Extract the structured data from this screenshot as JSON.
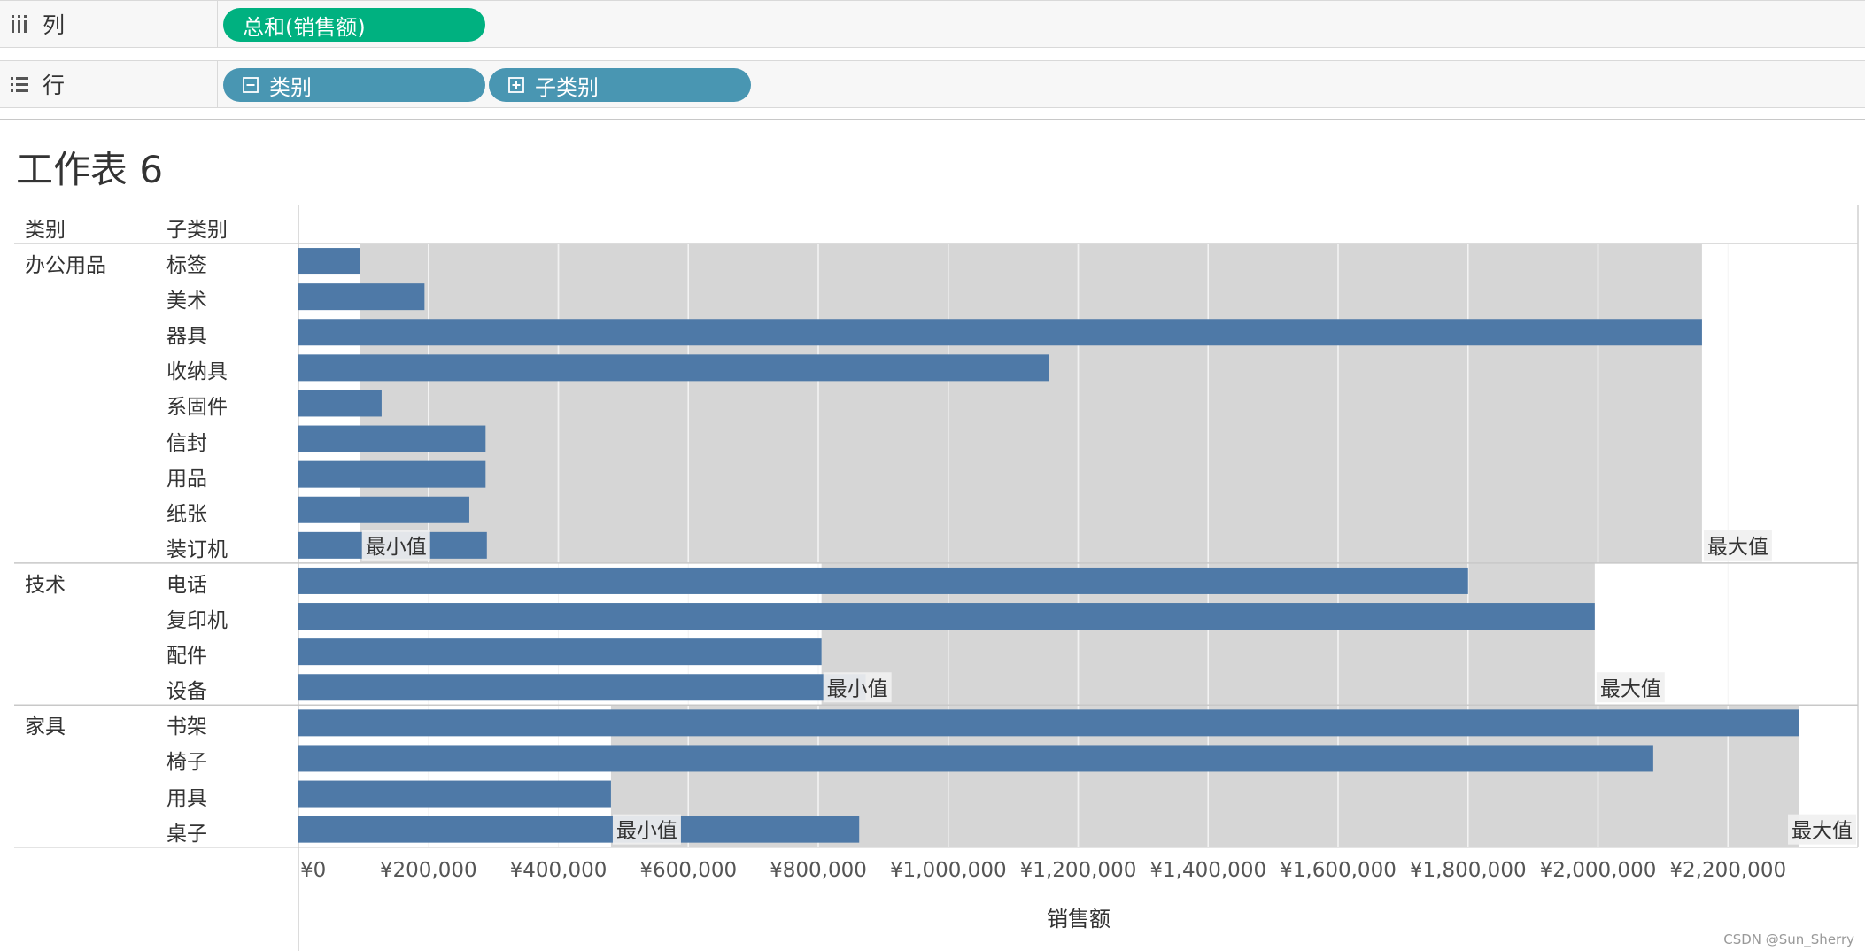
{
  "shelves": {
    "columns": {
      "label": "列",
      "pills": [
        "总和(销售额)"
      ]
    },
    "rows": {
      "label": "行",
      "pills": [
        "类别",
        "子类别"
      ]
    }
  },
  "sheet_title": "工作表 6",
  "headers": {
    "category": "类别",
    "subcategory": "子类别"
  },
  "colors": {
    "bar": "#4e79a7",
    "band": "#d6d6d6",
    "pill_measure": "#00b180",
    "pill_dimension": "#4996b2"
  },
  "icons": {
    "columns_shelf": "columns-icon",
    "rows_shelf": "rows-icon",
    "collapse": "minus-box-icon",
    "expand": "plus-box-icon"
  },
  "chart_data": {
    "type": "bar",
    "orientation": "horizontal",
    "xlabel": "销售额",
    "xlim": [
      0,
      2400000
    ],
    "ticks": [
      0,
      200000,
      400000,
      600000,
      800000,
      1000000,
      1200000,
      1400000,
      1600000,
      1800000,
      2000000,
      2200000
    ],
    "tick_labels": [
      "¥0",
      "¥200,000",
      "¥400,000",
      "¥600,000",
      "¥800,000",
      "¥1,000,000",
      "¥1,200,000",
      "¥1,400,000",
      "¥1,600,000",
      "¥1,800,000",
      "¥2,000,000",
      "¥2,200,000"
    ],
    "groups": [
      {
        "category": "办公用品",
        "subcategories": [
          "标签",
          "美术",
          "器具",
          "收纳具",
          "系固件",
          "信封",
          "用品",
          "纸张",
          "装订机"
        ],
        "values": [
          95000,
          194000,
          2160000,
          1155000,
          128000,
          288000,
          288000,
          263000,
          290000
        ],
        "reference_band": {
          "min": 95000,
          "max": 2160000,
          "min_label": "最小值",
          "max_label": "最大值"
        }
      },
      {
        "category": "技术",
        "subcategories": [
          "电话",
          "复印机",
          "配件",
          "设备"
        ],
        "values": [
          1800000,
          1995000,
          805000,
          873000
        ],
        "reference_band": {
          "min": 805000,
          "max": 1995000,
          "min_label": "最小值",
          "max_label": "最大值"
        }
      },
      {
        "category": "家具",
        "subcategories": [
          "书架",
          "椅子",
          "用具",
          "桌子"
        ],
        "values": [
          2310000,
          2085000,
          481000,
          863000
        ],
        "reference_band": {
          "min": 481000,
          "max": 2310000,
          "min_label": "最小值",
          "max_label": "最大值"
        }
      }
    ]
  },
  "watermark": "CSDN @Sun_Sherry"
}
